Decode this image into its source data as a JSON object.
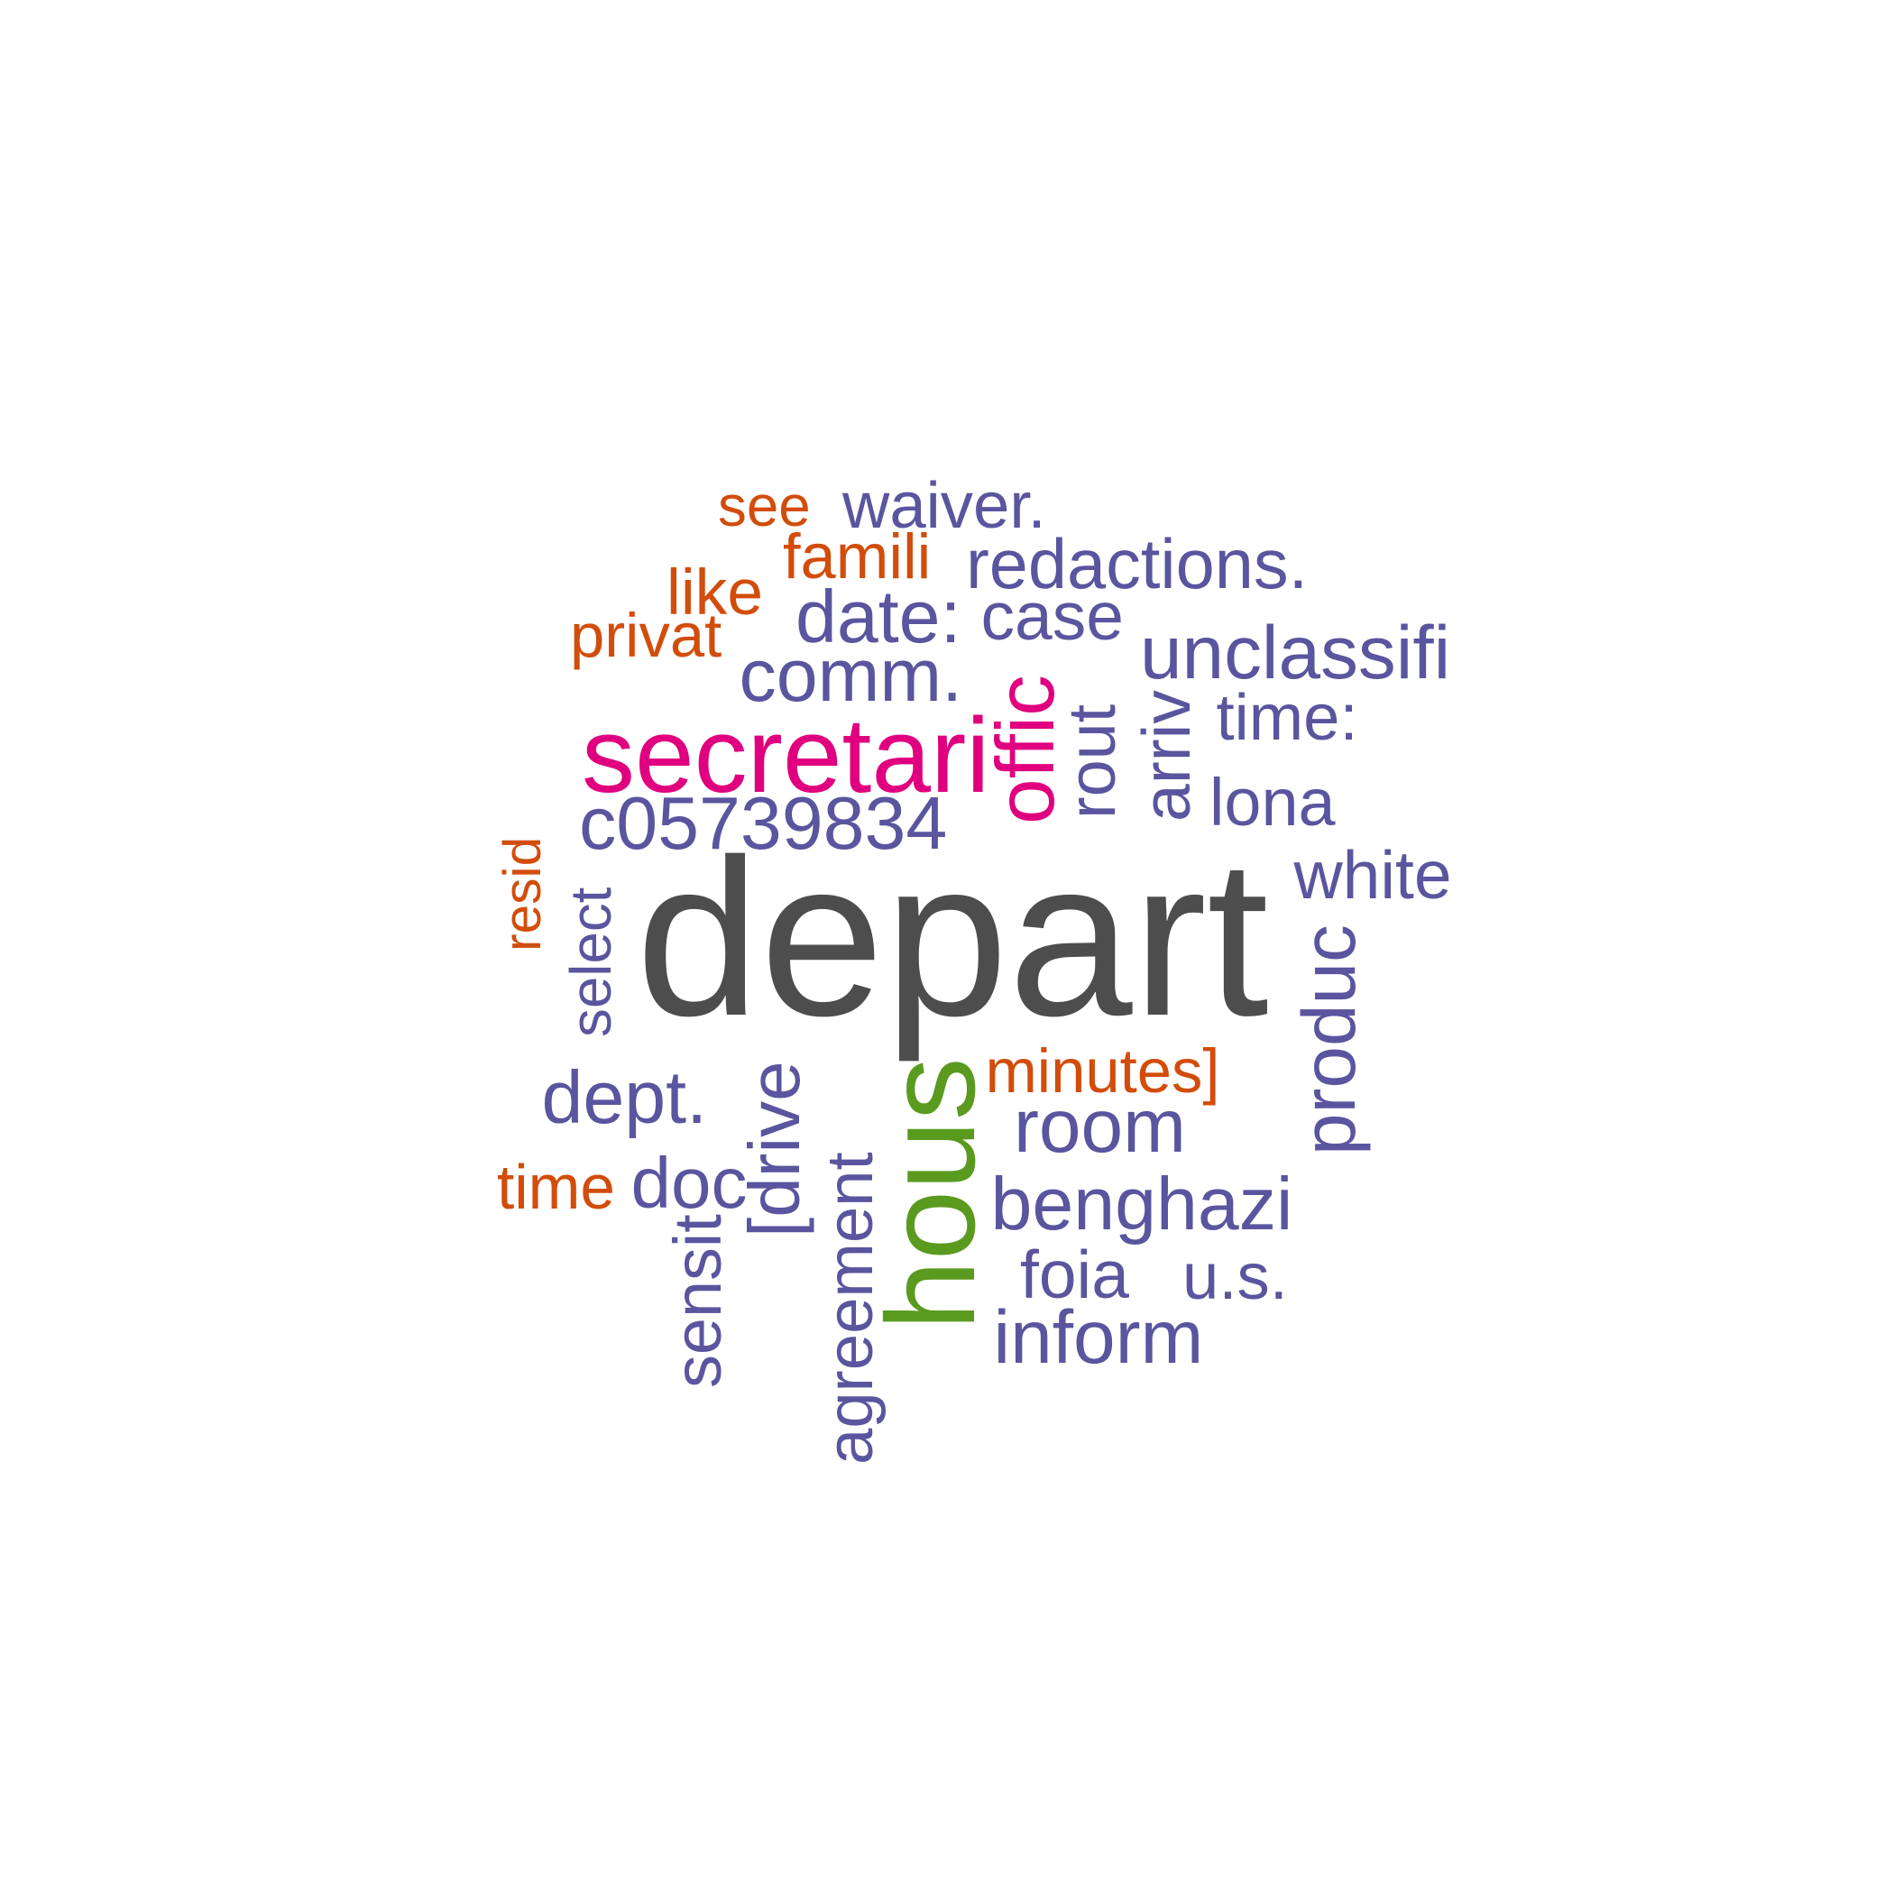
{
  "palette": {
    "gray": "#4d4d4d",
    "magenta": "#e0007f",
    "green": "#5a9a1f",
    "purple": "#5a559e",
    "orange": "#d24d0b"
  },
  "words": [
    {
      "text": "depart",
      "color": "gray",
      "rank": 1
    },
    {
      "text": "secretari",
      "color": "magenta",
      "rank": 2
    },
    {
      "text": "offic",
      "color": "magenta",
      "rank": 3
    },
    {
      "text": "hous",
      "color": "green",
      "rank": 4
    },
    {
      "text": "waiver.",
      "color": "purple",
      "rank": 5
    },
    {
      "text": "redactions.",
      "color": "purple",
      "rank": 6
    },
    {
      "text": "date:",
      "color": "purple",
      "rank": 7
    },
    {
      "text": "case",
      "color": "purple",
      "rank": 8
    },
    {
      "text": "unclassifi",
      "color": "purple",
      "rank": 9
    },
    {
      "text": "comm.",
      "color": "purple",
      "rank": 10
    },
    {
      "text": "time:",
      "color": "purple",
      "rank": 11
    },
    {
      "text": "rout",
      "color": "purple",
      "rank": 12
    },
    {
      "text": "arriv",
      "color": "purple",
      "rank": 13
    },
    {
      "text": "lona",
      "color": "purple",
      "rank": 14
    },
    {
      "text": "c05739834",
      "color": "purple",
      "rank": 15
    },
    {
      "text": "white",
      "color": "purple",
      "rank": 16
    },
    {
      "text": "select",
      "color": "purple",
      "rank": 17
    },
    {
      "text": "produc",
      "color": "purple",
      "rank": 18
    },
    {
      "text": "dept.",
      "color": "purple",
      "rank": 19
    },
    {
      "text": "room",
      "color": "purple",
      "rank": 20
    },
    {
      "text": "doc",
      "color": "purple",
      "rank": 21
    },
    {
      "text": "[drive",
      "color": "purple",
      "rank": 22
    },
    {
      "text": "agreement",
      "color": "purple",
      "rank": 23
    },
    {
      "text": "benghazi",
      "color": "purple",
      "rank": 24
    },
    {
      "text": "sensit",
      "color": "purple",
      "rank": 25
    },
    {
      "text": "foia",
      "color": "purple",
      "rank": 26
    },
    {
      "text": "u.s.",
      "color": "purple",
      "rank": 27
    },
    {
      "text": "inform",
      "color": "purple",
      "rank": 28
    },
    {
      "text": "see",
      "color": "orange",
      "rank": 29
    },
    {
      "text": "famili",
      "color": "orange",
      "rank": 30
    },
    {
      "text": "like",
      "color": "orange",
      "rank": 31
    },
    {
      "text": "privat",
      "color": "orange",
      "rank": 32
    },
    {
      "text": "resid",
      "color": "orange",
      "rank": 33
    },
    {
      "text": "minutes]",
      "color": "orange",
      "rank": 34
    },
    {
      "text": "time",
      "color": "orange",
      "rank": 35
    }
  ]
}
